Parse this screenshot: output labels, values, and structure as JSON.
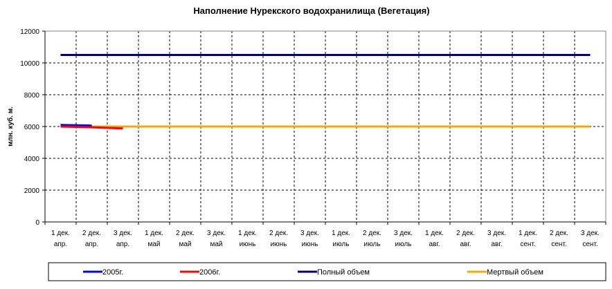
{
  "chart_data": {
    "type": "line",
    "title": "Наполнение Нурекского водохранилища (Вегетация)",
    "y_label": "млн. куб. м.",
    "categories": [
      [
        "1 дек.",
        "апр."
      ],
      [
        "2 дек.",
        "апр."
      ],
      [
        "3 дек.",
        "апр."
      ],
      [
        "1 дек.",
        "май"
      ],
      [
        "2 дек.",
        "май"
      ],
      [
        "3 дек.",
        "май"
      ],
      [
        "1 дек.",
        "июнь"
      ],
      [
        "2 дек.",
        "июнь"
      ],
      [
        "3 дек.",
        "июнь"
      ],
      [
        "1 дек.",
        "июль"
      ],
      [
        "2 дек.",
        "июль"
      ],
      [
        "3 дек.",
        "июль"
      ],
      [
        "1 дек.",
        "авг."
      ],
      [
        "2 дек.",
        "авг."
      ],
      [
        "3 дек.",
        "авг."
      ],
      [
        "1 дек.",
        "сент."
      ],
      [
        "2 дек.",
        "сент."
      ],
      [
        "3 дек.",
        "сент."
      ]
    ],
    "series": [
      {
        "name": "2005г.",
        "color": "#0000ff",
        "values": [
          6100,
          6060,
          null,
          null,
          null,
          null,
          null,
          null,
          null,
          null,
          null,
          null,
          null,
          null,
          null,
          null,
          null,
          null
        ]
      },
      {
        "name": "2006г.",
        "color": "#ff0000",
        "values": [
          6000,
          5950,
          5880,
          null,
          null,
          null,
          null,
          null,
          null,
          null,
          null,
          null,
          null,
          null,
          null,
          null,
          null,
          null
        ]
      },
      {
        "name": "Полный объем",
        "color": "#000080",
        "values": [
          10500,
          10500,
          10500,
          10500,
          10500,
          10500,
          10500,
          10500,
          10500,
          10500,
          10500,
          10500,
          10500,
          10500,
          10500,
          10500,
          10500,
          10500
        ]
      },
      {
        "name": "Мертвый объем",
        "color": "#ffa500",
        "values": [
          6000,
          6000,
          6000,
          6000,
          6000,
          6000,
          6000,
          6000,
          6000,
          6000,
          6000,
          6000,
          6000,
          6000,
          6000,
          6000,
          6000,
          6000
        ]
      }
    ],
    "ylim": [
      0,
      12000
    ],
    "yticks": [
      0,
      2000,
      4000,
      6000,
      8000,
      10000,
      12000
    ],
    "grid": true,
    "legend": "bottom"
  }
}
